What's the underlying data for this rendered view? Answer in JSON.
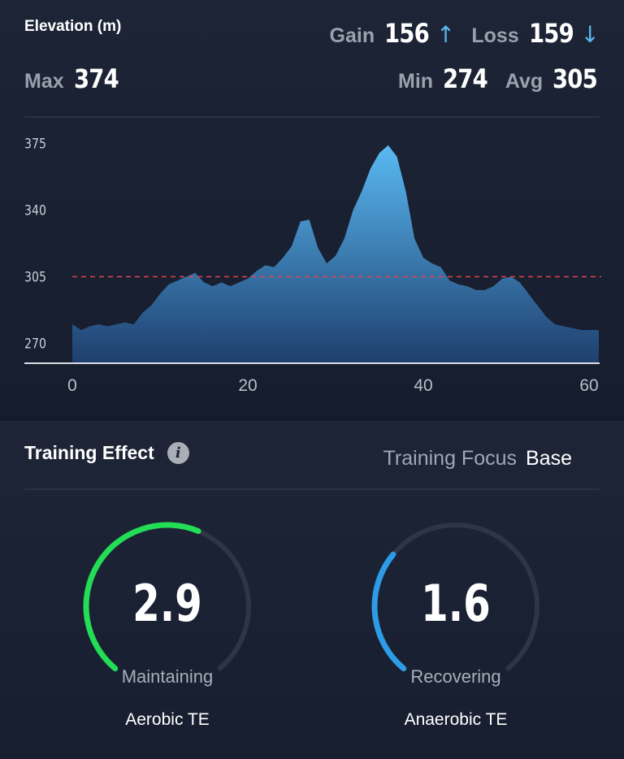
{
  "elevation": {
    "title": "Elevation (m)",
    "gain_label": "Gain",
    "gain_value": "156",
    "gain_arrow": "↑",
    "loss_label": "Loss",
    "loss_value": "159",
    "loss_arrow": "↓",
    "max_label": "Max",
    "max_value": "374",
    "min_label": "Min",
    "min_value": "274",
    "avg_label": "Avg",
    "avg_value": "305"
  },
  "chart_data": {
    "type": "area",
    "title": "Elevation (m)",
    "xlabel": "",
    "ylabel": "",
    "xlim": [
      0,
      60
    ],
    "ylim": [
      260,
      382
    ],
    "yticks": [
      "375",
      "340",
      "305",
      "270"
    ],
    "xticks": [
      "0",
      "20",
      "40",
      "60"
    ],
    "ytick_values": [
      375,
      340,
      305,
      270
    ],
    "xtick_values": [
      0,
      20,
      40,
      60
    ],
    "reference_line": {
      "value": 305,
      "color": "#e0454b",
      "style": "dashed"
    },
    "fill_top": "#5ab9f3",
    "fill_bottom": "#1e3f6e",
    "grid": false,
    "x": [
      0,
      1,
      2,
      3,
      4,
      5,
      6,
      7,
      8,
      9,
      10,
      11,
      12,
      13,
      14,
      15,
      16,
      17,
      18,
      19,
      20,
      21,
      22,
      23,
      24,
      25,
      26,
      27,
      28,
      29,
      30,
      31,
      32,
      33,
      34,
      35,
      36,
      37,
      38,
      39,
      40,
      41,
      42,
      43,
      44,
      45,
      46,
      47,
      48,
      49,
      50,
      51,
      52,
      53,
      54,
      55,
      56,
      57,
      58,
      59,
      60
    ],
    "values": [
      280,
      277,
      279,
      280,
      279,
      280,
      281,
      280,
      286,
      290,
      296,
      301,
      303,
      305,
      307,
      302,
      300,
      302,
      300,
      302,
      304,
      308,
      311,
      310,
      315,
      321,
      334,
      335,
      320,
      312,
      316,
      325,
      340,
      350,
      362,
      370,
      374,
      368,
      350,
      325,
      315,
      312,
      310,
      303,
      301,
      300,
      298,
      298,
      300,
      304,
      305,
      302,
      296,
      290,
      284,
      280,
      279,
      278,
      277,
      277,
      277
    ]
  },
  "training": {
    "title": "Training Effect",
    "info_icon": "info-icon",
    "focus_label": "Training Focus",
    "focus_value": "Base",
    "aerobic": {
      "value": "2.9",
      "numeric": 2.9,
      "max": 5.0,
      "status": "Maintaining",
      "name": "Aerobic TE",
      "color": "#22dd55"
    },
    "anaerobic": {
      "value": "1.6",
      "numeric": 1.6,
      "max": 5.0,
      "status": "Recovering",
      "name": "Anaerobic TE",
      "color": "#2e9be6"
    }
  }
}
